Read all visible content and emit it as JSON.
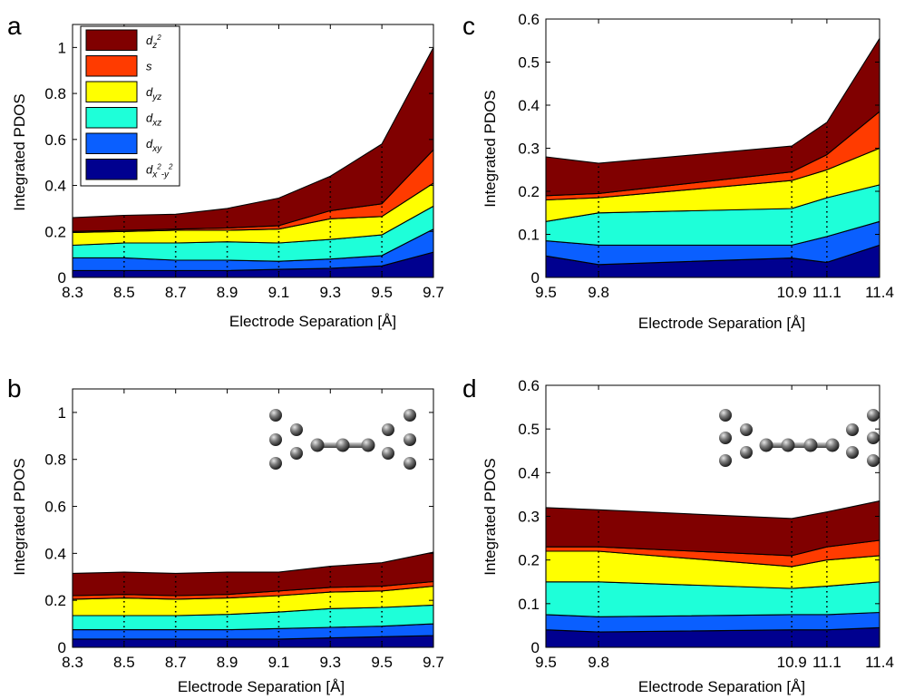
{
  "colors": {
    "dx2y2": "#00008f",
    "dxy": "#0a5fff",
    "dxz": "#1effd9",
    "dyz": "#ffff00",
    "s": "#ff3b00",
    "dz2": "#800000"
  },
  "legend": [
    {
      "key": "dz2",
      "base": "d",
      "sub": "z",
      "sup": "2",
      "sub2": "",
      "sup2": ""
    },
    {
      "key": "s",
      "base": "s",
      "sub": "",
      "sup": "",
      "sub2": "",
      "sup2": ""
    },
    {
      "key": "dyz",
      "base": "d",
      "sub": "yz",
      "sup": "",
      "sub2": "",
      "sup2": ""
    },
    {
      "key": "dxz",
      "base": "d",
      "sub": "xz",
      "sup": "",
      "sub2": "",
      "sup2": ""
    },
    {
      "key": "dxy",
      "base": "d",
      "sub": "xy",
      "sup": "",
      "sub2": "",
      "sup2": ""
    },
    {
      "key": "dx2y2",
      "base": "d",
      "sub": "x",
      "sup": "2",
      "sub2": "-y",
      "sup2": "2"
    }
  ],
  "chart_data": [
    {
      "panel": "a",
      "type": "area",
      "stacked": true,
      "xlabel": "Electrode Separation [Å]",
      "ylabel": "Integrated PDOS",
      "x": [
        8.3,
        8.5,
        8.7,
        8.9,
        9.1,
        9.3,
        9.5,
        9.7
      ],
      "xticks": [
        "8.3",
        "8.5",
        "8.7",
        "8.9",
        "9.1",
        "9.3",
        "9.5",
        "9.7"
      ],
      "xlim": [
        8.3,
        9.7
      ],
      "ylim": [
        0,
        1.1
      ],
      "yticks": [
        "0",
        "0.2",
        "0.4",
        "0.6",
        "0.8",
        "1"
      ],
      "ytick_values": [
        0,
        0.2,
        0.4,
        0.6,
        0.8,
        1
      ],
      "legend": true,
      "inset": "none",
      "series": [
        {
          "key": "dx2y2",
          "values": [
            0.03,
            0.03,
            0.03,
            0.03,
            0.035,
            0.04,
            0.05,
            0.11
          ]
        },
        {
          "key": "dxy",
          "values": [
            0.055,
            0.055,
            0.045,
            0.045,
            0.035,
            0.04,
            0.045,
            0.1
          ]
        },
        {
          "key": "dxz",
          "values": [
            0.055,
            0.065,
            0.075,
            0.08,
            0.08,
            0.085,
            0.09,
            0.1
          ]
        },
        {
          "key": "dyz",
          "values": [
            0.055,
            0.05,
            0.055,
            0.05,
            0.06,
            0.09,
            0.08,
            0.1
          ]
        },
        {
          "key": "s",
          "values": [
            0.005,
            0.005,
            0.005,
            0.01,
            0.015,
            0.035,
            0.055,
            0.145
          ]
        },
        {
          "key": "dz2",
          "values": [
            0.06,
            0.065,
            0.065,
            0.085,
            0.12,
            0.15,
            0.26,
            0.445
          ]
        }
      ]
    },
    {
      "panel": "b",
      "type": "area",
      "stacked": true,
      "xlabel": "Electrode Separation [Å]",
      "ylabel": "Integrated PDOS",
      "x": [
        8.3,
        8.5,
        8.7,
        8.9,
        9.1,
        9.3,
        9.5,
        9.7
      ],
      "xticks": [
        "8.3",
        "8.5",
        "8.7",
        "8.9",
        "9.1",
        "9.3",
        "9.5",
        "9.7"
      ],
      "xlim": [
        8.3,
        9.7
      ],
      "ylim": [
        0,
        1.1
      ],
      "yticks": [
        "0",
        "0.2",
        "0.4",
        "0.6",
        "0.8",
        "1"
      ],
      "ytick_values": [
        0,
        0.2,
        0.4,
        0.6,
        0.8,
        1
      ],
      "legend": false,
      "inset": "n4",
      "series": [
        {
          "key": "dx2y2",
          "values": [
            0.035,
            0.035,
            0.035,
            0.035,
            0.035,
            0.04,
            0.045,
            0.05
          ]
        },
        {
          "key": "dxy",
          "values": [
            0.04,
            0.04,
            0.04,
            0.04,
            0.045,
            0.045,
            0.045,
            0.05
          ]
        },
        {
          "key": "dxz",
          "values": [
            0.06,
            0.06,
            0.06,
            0.065,
            0.07,
            0.08,
            0.08,
            0.08
          ]
        },
        {
          "key": "dyz",
          "values": [
            0.07,
            0.075,
            0.07,
            0.07,
            0.07,
            0.07,
            0.07,
            0.08
          ]
        },
        {
          "key": "s",
          "values": [
            0.015,
            0.015,
            0.015,
            0.015,
            0.02,
            0.02,
            0.02,
            0.02
          ]
        },
        {
          "key": "dz2",
          "values": [
            0.095,
            0.095,
            0.095,
            0.095,
            0.08,
            0.09,
            0.1,
            0.125
          ]
        }
      ]
    },
    {
      "panel": "c",
      "type": "area",
      "stacked": true,
      "xlabel": "Electrode Separation [Å]",
      "ylabel": "Integrated PDOS",
      "x": [
        9.5,
        9.8,
        10.9,
        11.1,
        11.4
      ],
      "xticks": [
        "9.5",
        "9.8",
        "10.9",
        "11.1",
        "11.4"
      ],
      "xlim": [
        9.5,
        11.4
      ],
      "ylim": [
        0,
        0.6
      ],
      "yticks": [
        "0",
        "0.1",
        "0.2",
        "0.3",
        "0.4",
        "0.5",
        "0.6"
      ],
      "ytick_values": [
        0,
        0.1,
        0.2,
        0.3,
        0.4,
        0.5,
        0.6
      ],
      "legend": false,
      "inset": "none",
      "series": [
        {
          "key": "dx2y2",
          "values": [
            0.05,
            0.03,
            0.045,
            0.035,
            0.075
          ]
        },
        {
          "key": "dxy",
          "values": [
            0.035,
            0.045,
            0.03,
            0.06,
            0.055
          ]
        },
        {
          "key": "dxz",
          "values": [
            0.045,
            0.075,
            0.085,
            0.09,
            0.085
          ]
        },
        {
          "key": "dyz",
          "values": [
            0.05,
            0.035,
            0.065,
            0.065,
            0.085
          ]
        },
        {
          "key": "s",
          "values": [
            0.01,
            0.01,
            0.02,
            0.035,
            0.085
          ]
        },
        {
          "key": "dz2",
          "values": [
            0.09,
            0.07,
            0.06,
            0.075,
            0.17
          ]
        }
      ]
    },
    {
      "panel": "d",
      "type": "area",
      "stacked": true,
      "xlabel": "Electrode Separation [Å]",
      "ylabel": "Integrated PDOS",
      "x": [
        9.5,
        9.8,
        10.9,
        11.1,
        11.4
      ],
      "xticks": [
        "9.5",
        "9.8",
        "10.9",
        "11.1",
        "11.4"
      ],
      "xlim": [
        9.5,
        11.4
      ],
      "ylim": [
        0,
        0.6
      ],
      "yticks": [
        "0",
        "0.1",
        "0.2",
        "0.3",
        "0.4",
        "0.5",
        "0.6"
      ],
      "ytick_values": [
        0,
        0.1,
        0.2,
        0.3,
        0.4,
        0.5,
        0.6
      ],
      "legend": false,
      "inset": "n5",
      "series": [
        {
          "key": "dx2y2",
          "values": [
            0.04,
            0.035,
            0.04,
            0.04,
            0.045
          ]
        },
        {
          "key": "dxy",
          "values": [
            0.035,
            0.035,
            0.035,
            0.035,
            0.035
          ]
        },
        {
          "key": "dxz",
          "values": [
            0.075,
            0.08,
            0.06,
            0.065,
            0.07
          ]
        },
        {
          "key": "dyz",
          "values": [
            0.07,
            0.07,
            0.05,
            0.06,
            0.06
          ]
        },
        {
          "key": "s",
          "values": [
            0.01,
            0.01,
            0.025,
            0.03,
            0.035
          ]
        },
        {
          "key": "dz2",
          "values": [
            0.09,
            0.085,
            0.085,
            0.08,
            0.09
          ]
        }
      ]
    }
  ]
}
